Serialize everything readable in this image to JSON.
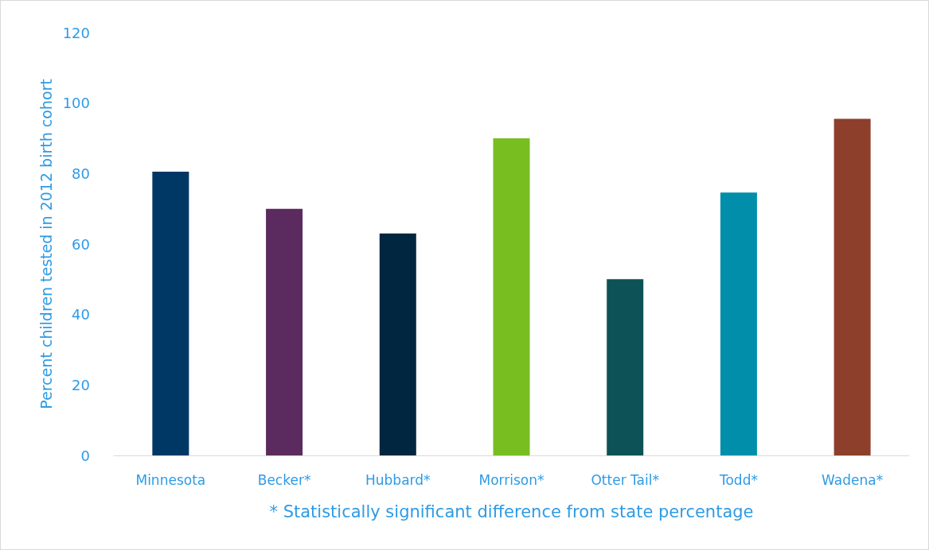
{
  "chart_data": {
    "type": "bar",
    "categories": [
      "Minnesota",
      "Becker*",
      "Hubbard*",
      "Morrison*",
      "Otter Tail*",
      "Todd*",
      "Wadena*"
    ],
    "values": [
      80.5,
      70,
      63,
      90,
      50,
      74.6,
      95.5
    ],
    "colors": [
      "#003865",
      "#5b2a5e",
      "#002640",
      "#78be20",
      "#0d5257",
      "#008eaa",
      "#8d3f2b"
    ],
    "ylabel": "Percent children tested in 2012 birth cohort",
    "xlabel": "* Statistically significant difference from state percentage",
    "ylim": [
      0,
      120
    ],
    "yticks": [
      0,
      20,
      40,
      60,
      80,
      100,
      120
    ],
    "grid": false
  }
}
